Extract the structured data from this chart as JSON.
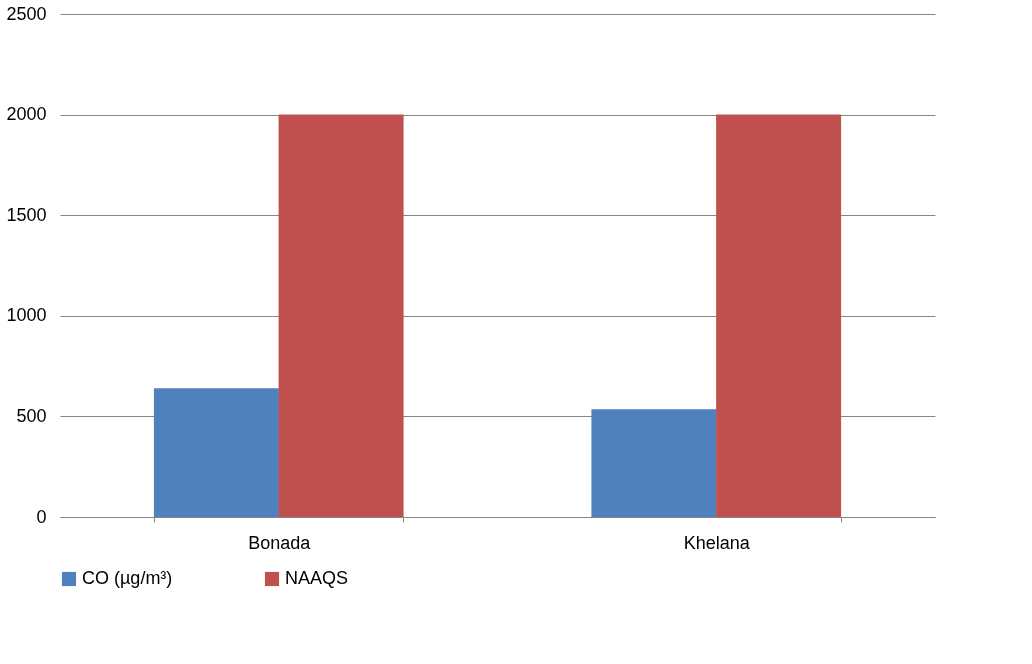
{
  "chart_data": {
    "type": "bar",
    "categories": [
      "Bonada",
      "Khelana"
    ],
    "series": [
      {
        "name": "CO (µg/m³)",
        "color": "#4f81bd",
        "values": [
          640,
          535
        ]
      },
      {
        "name": "NAAQS",
        "color": "#c0504d",
        "values": [
          2000,
          2000
        ]
      }
    ],
    "ylim": [
      0,
      2500
    ],
    "yticks": [
      0,
      500,
      1000,
      1500,
      2000,
      2500
    ],
    "grid": "y",
    "legend": "bottom"
  }
}
